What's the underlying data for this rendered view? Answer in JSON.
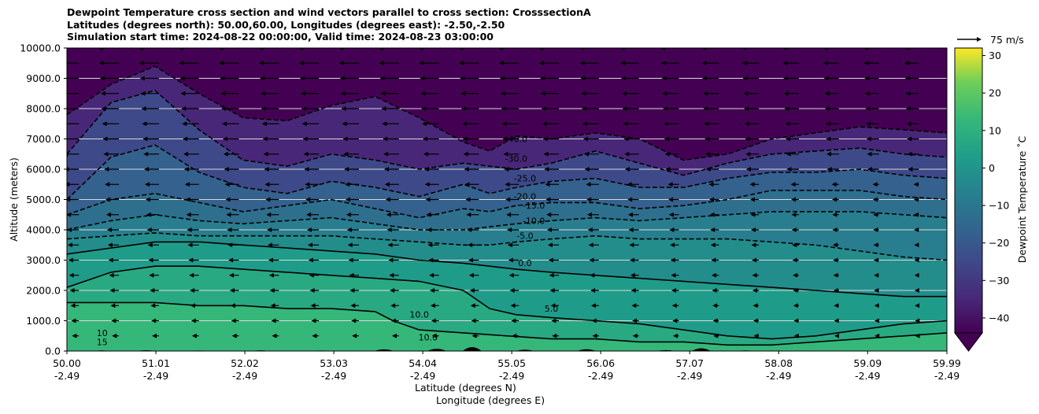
{
  "chart_data": {
    "type": "heatmap",
    "title_lines": [
      "Dewpoint Temperature cross section and wind vectors parallel to cross section: CrosssectionA",
      "Latitudes (degrees north): 50.00,60.00, Longitudes (degrees east): -2.50,-2.50",
      "Simulation start time: 2024-08-22 00:00:00, Valid time: 2024-08-23 03:00:00"
    ],
    "ylabel": "Altitude (meters)",
    "xlabel_lat": "Latitude (degrees N)",
    "xlabel_lon": "Longitude (degrees E)",
    "ylim": [
      0,
      10000
    ],
    "y_ticks": [
      0,
      1000,
      2000,
      3000,
      4000,
      5000,
      6000,
      7000,
      8000,
      9000,
      10000
    ],
    "y_tick_labels": [
      "0.0",
      "1000.0",
      "2000.0",
      "3000.0",
      "4000.0",
      "5000.0",
      "6000.0",
      "7000.0",
      "8000.0",
      "9000.0",
      "10000.0"
    ],
    "x_tick_lat": [
      "50.00",
      "51.01",
      "52.02",
      "53.03",
      "54.04",
      "55.05",
      "56.06",
      "57.07",
      "58.08",
      "59.09",
      "59.99"
    ],
    "x_tick_lon": [
      "-2.49",
      "-2.49",
      "-2.49",
      "-2.49",
      "-2.49",
      "-2.49",
      "-2.49",
      "-2.49",
      "-2.49",
      "-2.49",
      "-2.49"
    ],
    "x_range": [
      50.0,
      59.99
    ],
    "grid": "horizontal",
    "colorbar": {
      "label": "Dewpoint Temperature $^\\circ$C",
      "label_display": "Dewpoint Temperature ˚C",
      "range": [
        -44,
        32
      ],
      "ticks": [
        -40,
        -30,
        -20,
        -10,
        0,
        10,
        20,
        30
      ],
      "tick_labels": [
        "−40",
        "−30",
        "−20",
        "−10",
        "0",
        "10",
        "20",
        "30"
      ],
      "extend": "min",
      "colormap": "viridis"
    },
    "quiver_key": {
      "label": "75 m/s"
    },
    "contour_labels": [
      "-40.0",
      "-30.0",
      "-25.0",
      "-20.0",
      "-15.0",
      "-10.0",
      "-5.0",
      "0.0",
      "5.0",
      "10.0",
      "10.0",
      "10",
      "15"
    ],
    "contours": [
      {
        "level": -40,
        "x": [
          50.0,
          50.5,
          51.0,
          51.5,
          52.0,
          52.5,
          53.0,
          53.5,
          54.0,
          54.5,
          54.8,
          55.1,
          55.5,
          56.0,
          56.5,
          57.0,
          57.5,
          58.0,
          58.5,
          59.0,
          59.5,
          59.99
        ],
        "y": [
          7800,
          8800,
          9400,
          8500,
          7700,
          7600,
          8100,
          8400,
          7700,
          6900,
          6600,
          7100,
          7000,
          7200,
          7000,
          6300,
          6500,
          7000,
          7200,
          7400,
          7300,
          7200
        ]
      },
      {
        "level": -30,
        "x": [
          50.0,
          50.5,
          51.0,
          51.5,
          52.0,
          52.5,
          53.0,
          53.5,
          54.0,
          54.5,
          54.8,
          55.1,
          55.5,
          56.0,
          56.5,
          57.0,
          57.5,
          58.0,
          58.5,
          59.0,
          59.5,
          59.99
        ],
        "y": [
          6500,
          8200,
          8600,
          7300,
          6300,
          6100,
          6500,
          6300,
          6000,
          6200,
          6100,
          6000,
          6200,
          6600,
          6200,
          5800,
          6200,
          6500,
          6600,
          6700,
          6500,
          6400
        ]
      },
      {
        "level": -20,
        "x": [
          50.0,
          50.5,
          51.0,
          51.5,
          52.0,
          52.5,
          53.0,
          53.5,
          54.0,
          54.5,
          54.8,
          55.1,
          55.5,
          56.0,
          56.5,
          57.0,
          57.5,
          58.0,
          58.5,
          59.0,
          59.5,
          59.99
        ],
        "y": [
          5000,
          6400,
          6800,
          5900,
          5400,
          5200,
          5600,
          5400,
          5100,
          5500,
          5200,
          5400,
          5600,
          5700,
          5400,
          5400,
          5700,
          5900,
          5900,
          6000,
          5800,
          5700
        ]
      },
      {
        "level": -15,
        "x": [
          50.0,
          50.5,
          51.0,
          51.5,
          52.0,
          52.5,
          53.0,
          53.5,
          54.0,
          54.5,
          54.8,
          55.1,
          55.5,
          56.0,
          56.5,
          57.0,
          57.5,
          58.0,
          58.5,
          59.0,
          59.5,
          59.99
        ],
        "y": [
          4500,
          5000,
          5200,
          4900,
          4600,
          4800,
          5000,
          4700,
          4400,
          4700,
          4600,
          4800,
          4900,
          4900,
          4700,
          4800,
          5000,
          5300,
          5300,
          5300,
          5100,
          5000
        ]
      },
      {
        "level": -10,
        "x": [
          50.0,
          50.5,
          51.0,
          51.5,
          52.0,
          52.5,
          53.0,
          53.5,
          54.0,
          54.5,
          54.8,
          55.1,
          55.5,
          56.0,
          56.5,
          57.0,
          57.5,
          58.0,
          58.5,
          59.0,
          59.5,
          59.99
        ],
        "y": [
          4000,
          4300,
          4500,
          4300,
          4200,
          4300,
          4400,
          4200,
          4000,
          4000,
          4100,
          4200,
          4300,
          4400,
          4300,
          4400,
          4500,
          4600,
          4600,
          4600,
          4500,
          4400
        ]
      },
      {
        "level": -5,
        "x": [
          50.0,
          50.5,
          51.0,
          51.5,
          52.0,
          52.5,
          53.0,
          53.5,
          54.0,
          54.5,
          54.8,
          55.1,
          55.5,
          56.0,
          56.5,
          57.0,
          57.5,
          58.0,
          58.5,
          59.0,
          59.5,
          59.99
        ],
        "y": [
          3700,
          3800,
          3900,
          3800,
          3800,
          3800,
          3800,
          3700,
          3600,
          3500,
          3500,
          3600,
          3700,
          3800,
          3700,
          3700,
          3700,
          3600,
          3500,
          3300,
          3100,
          3000
        ]
      },
      {
        "level": 0,
        "x": [
          50.0,
          50.5,
          51.0,
          51.5,
          52.0,
          52.5,
          53.0,
          53.5,
          54.0,
          54.5,
          54.8,
          55.1,
          55.5,
          56.0,
          56.5,
          57.0,
          57.5,
          58.0,
          58.5,
          59.0,
          59.5,
          59.99
        ],
        "y": [
          3200,
          3400,
          3600,
          3600,
          3500,
          3400,
          3300,
          3200,
          3000,
          2900,
          2800,
          2700,
          2600,
          2500,
          2400,
          2300,
          2200,
          2100,
          2000,
          1900,
          1800,
          1800
        ]
      },
      {
        "level": 5,
        "x": [
          50.0,
          50.5,
          51.0,
          51.5,
          52.0,
          52.5,
          53.0,
          53.5,
          54.0,
          54.5,
          54.8,
          55.1,
          55.5,
          56.0,
          56.5,
          57.0,
          57.5,
          58.0,
          58.5,
          59.0,
          59.5,
          59.99
        ],
        "y": [
          2100,
          2600,
          2800,
          2800,
          2700,
          2600,
          2500,
          2400,
          2300,
          2000,
          1400,
          1200,
          1100,
          1000,
          900,
          700,
          500,
          400,
          500,
          700,
          900,
          1000
        ]
      },
      {
        "level": 10,
        "x": [
          50.0,
          50.5,
          51.0,
          51.5,
          52.0,
          52.5,
          53.0,
          53.5,
          53.7,
          54.0,
          54.5,
          55.0,
          55.5,
          56.0,
          56.5,
          57.0,
          57.5,
          58.0,
          58.5,
          59.0,
          59.5,
          59.99
        ],
        "y": [
          1600,
          1600,
          1600,
          1500,
          1500,
          1400,
          1400,
          1300,
          1000,
          700,
          600,
          500,
          400,
          400,
          300,
          300,
          200,
          200,
          300,
          400,
          500,
          600
        ]
      }
    ],
    "wind": {
      "direction": "southward (leftward along section)",
      "speed_profile_note": "strongest aloft"
    }
  }
}
